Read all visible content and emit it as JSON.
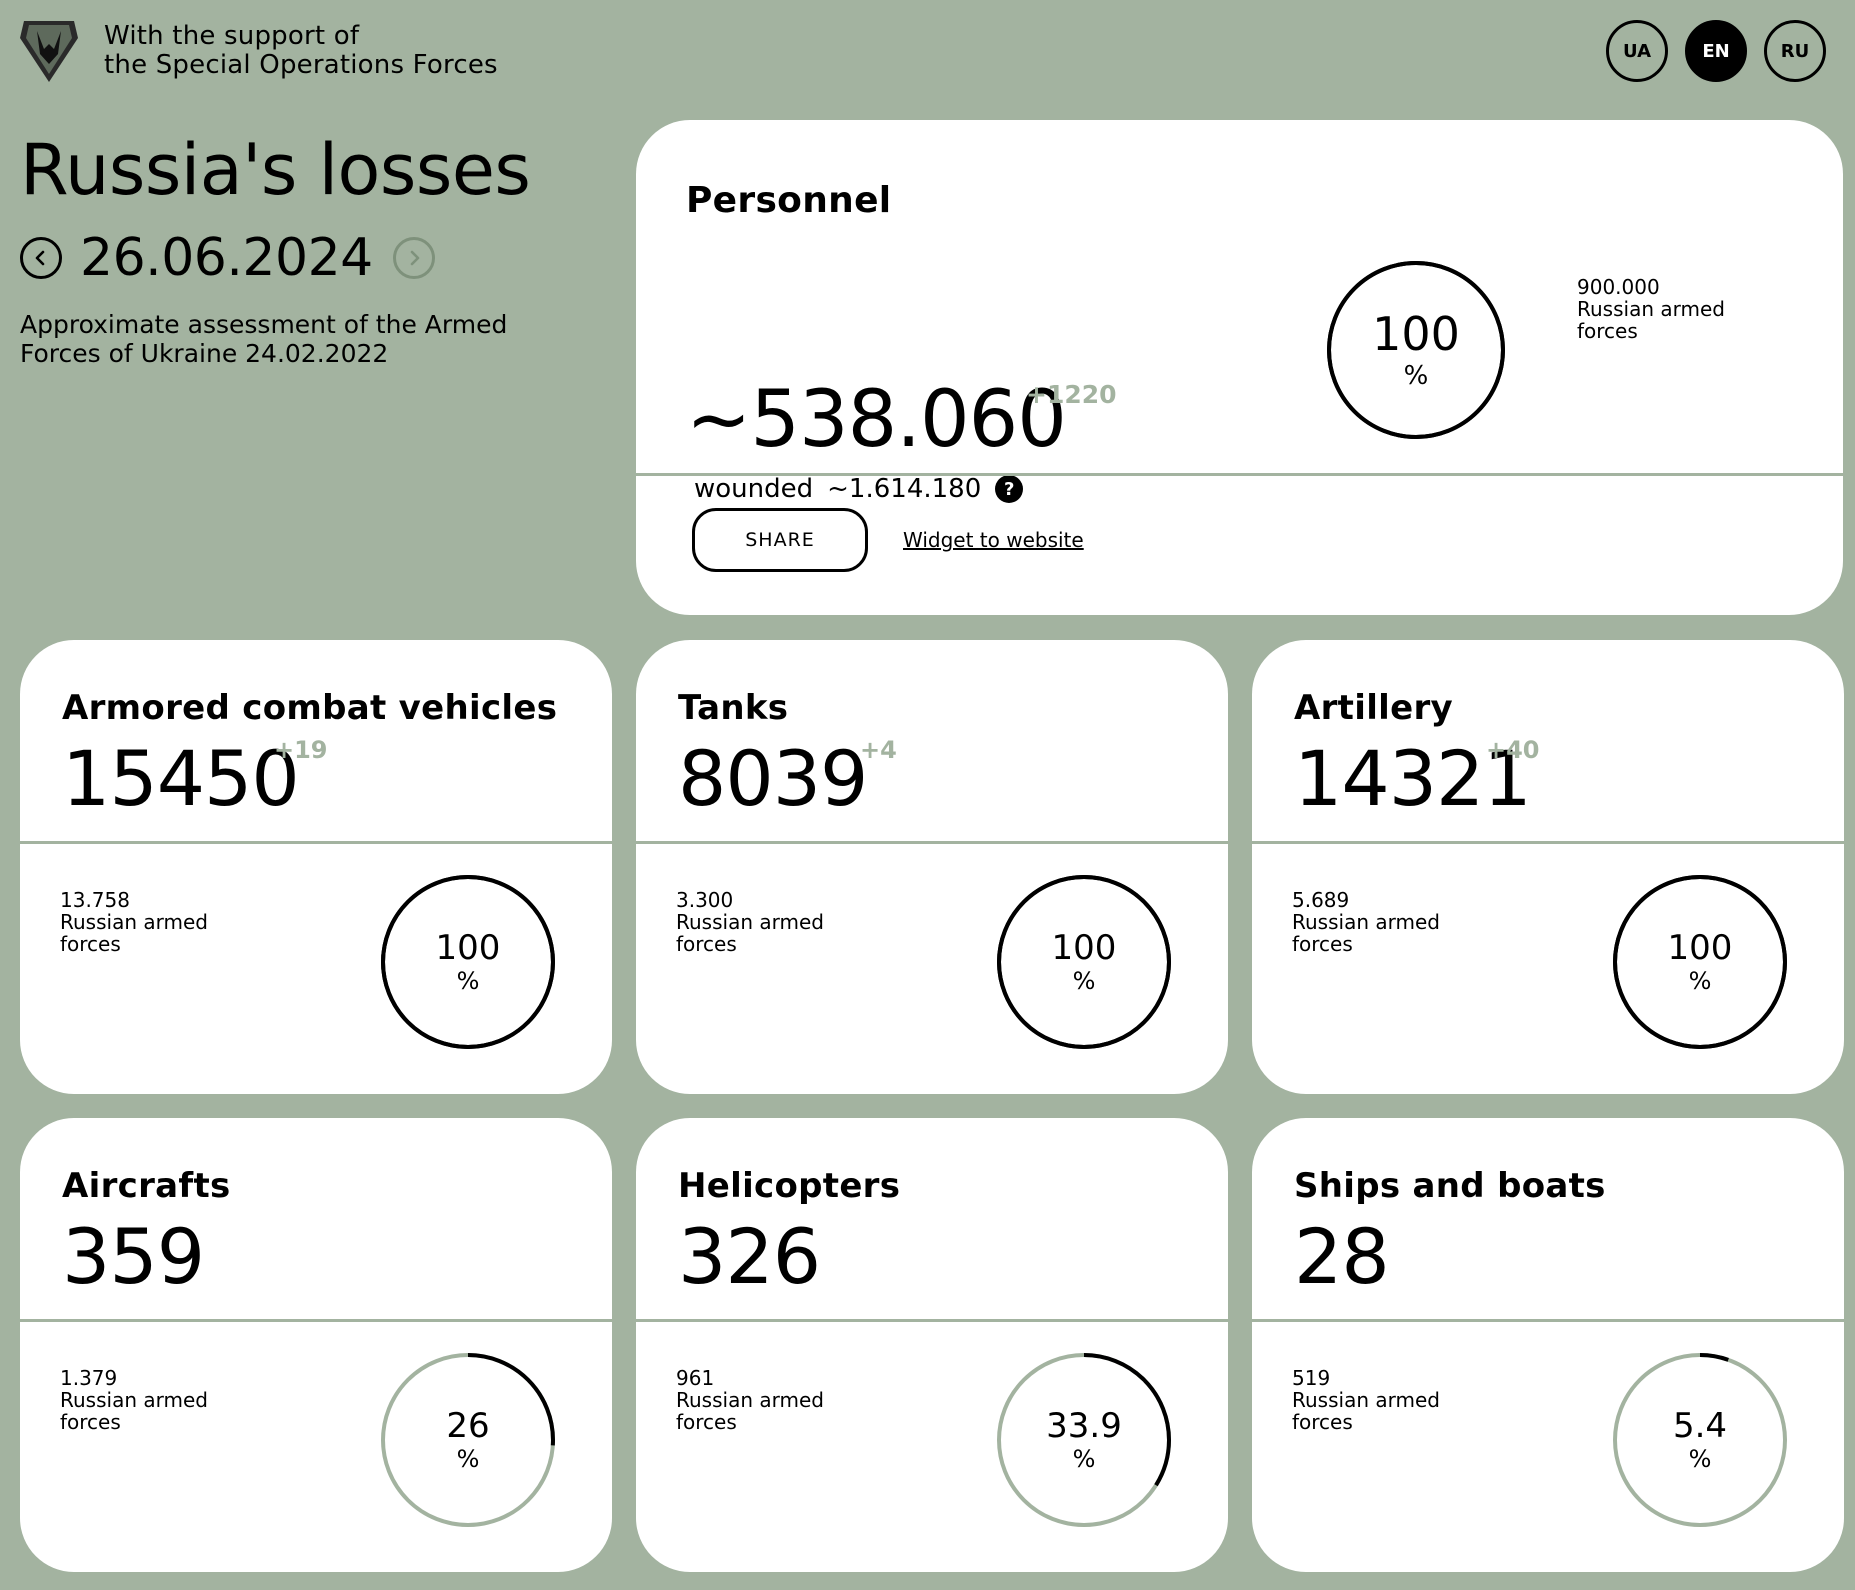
{
  "header": {
    "support_line1": "With the support of",
    "support_line2": "the Special Operations Forces",
    "languages": [
      {
        "code": "UA",
        "active": false
      },
      {
        "code": "EN",
        "active": true
      },
      {
        "code": "RU",
        "active": false
      }
    ]
  },
  "intro": {
    "title": "Russia's losses",
    "date": "26.06.2024",
    "subtitle": "Approximate assessment of the Armed Forces of Ukraine 24.02.2022"
  },
  "personnel": {
    "title": "Personnel",
    "value": "~538.060",
    "delta": "+1220",
    "wounded_label": "wounded",
    "wounded_value": "~1.614.180",
    "help": "?",
    "estimate_value": "900.000",
    "estimate_line1": "Russian armed",
    "estimate_line2": "forces",
    "percent": "100",
    "percent_sign": "%",
    "percent_value": 100,
    "share_label": "SHARE",
    "widget_label": "Widget to website"
  },
  "categories": [
    {
      "title": "Armored combat vehicles",
      "value": "15450",
      "delta": "+19",
      "estimate_value": "13.758",
      "estimate_line1": "Russian armed",
      "estimate_line2": "forces",
      "percent": "100",
      "percent_sign": "%",
      "percent_value": 100
    },
    {
      "title": "Tanks",
      "value": "8039",
      "delta": "+4",
      "estimate_value": "3.300",
      "estimate_line1": "Russian armed",
      "estimate_line2": "forces",
      "percent": "100",
      "percent_sign": "%",
      "percent_value": 100
    },
    {
      "title": "Artillery",
      "value": "14321",
      "delta": "+40",
      "estimate_value": "5.689",
      "estimate_line1": "Russian armed",
      "estimate_line2": "forces",
      "percent": "100",
      "percent_sign": "%",
      "percent_value": 100
    },
    {
      "title": "Aircrafts",
      "value": "359",
      "delta": "",
      "estimate_value": "1.379",
      "estimate_line1": "Russian armed",
      "estimate_line2": "forces",
      "percent": "26",
      "percent_sign": "%",
      "percent_value": 26
    },
    {
      "title": "Helicopters",
      "value": "326",
      "delta": "",
      "estimate_value": "961",
      "estimate_line1": "Russian armed",
      "estimate_line2": "forces",
      "percent": "33.9",
      "percent_sign": "%",
      "percent_value": 33.9
    },
    {
      "title": "Ships and boats",
      "value": "28",
      "delta": "",
      "estimate_value": "519",
      "estimate_line1": "Russian armed",
      "estimate_line2": "forces",
      "percent": "5.4",
      "percent_sign": "%",
      "percent_value": 5.4
    }
  ],
  "colors": {
    "background": "#a3b3a0",
    "card": "#ffffff",
    "ring_track": "#a3b3a0",
    "ring_fill": "#000000",
    "delta": "#a3b3a0"
  },
  "icons": {
    "logo": "sof-shield-logo",
    "prev": "chevron-left-icon",
    "next": "chevron-right-icon",
    "help": "question-icon"
  }
}
